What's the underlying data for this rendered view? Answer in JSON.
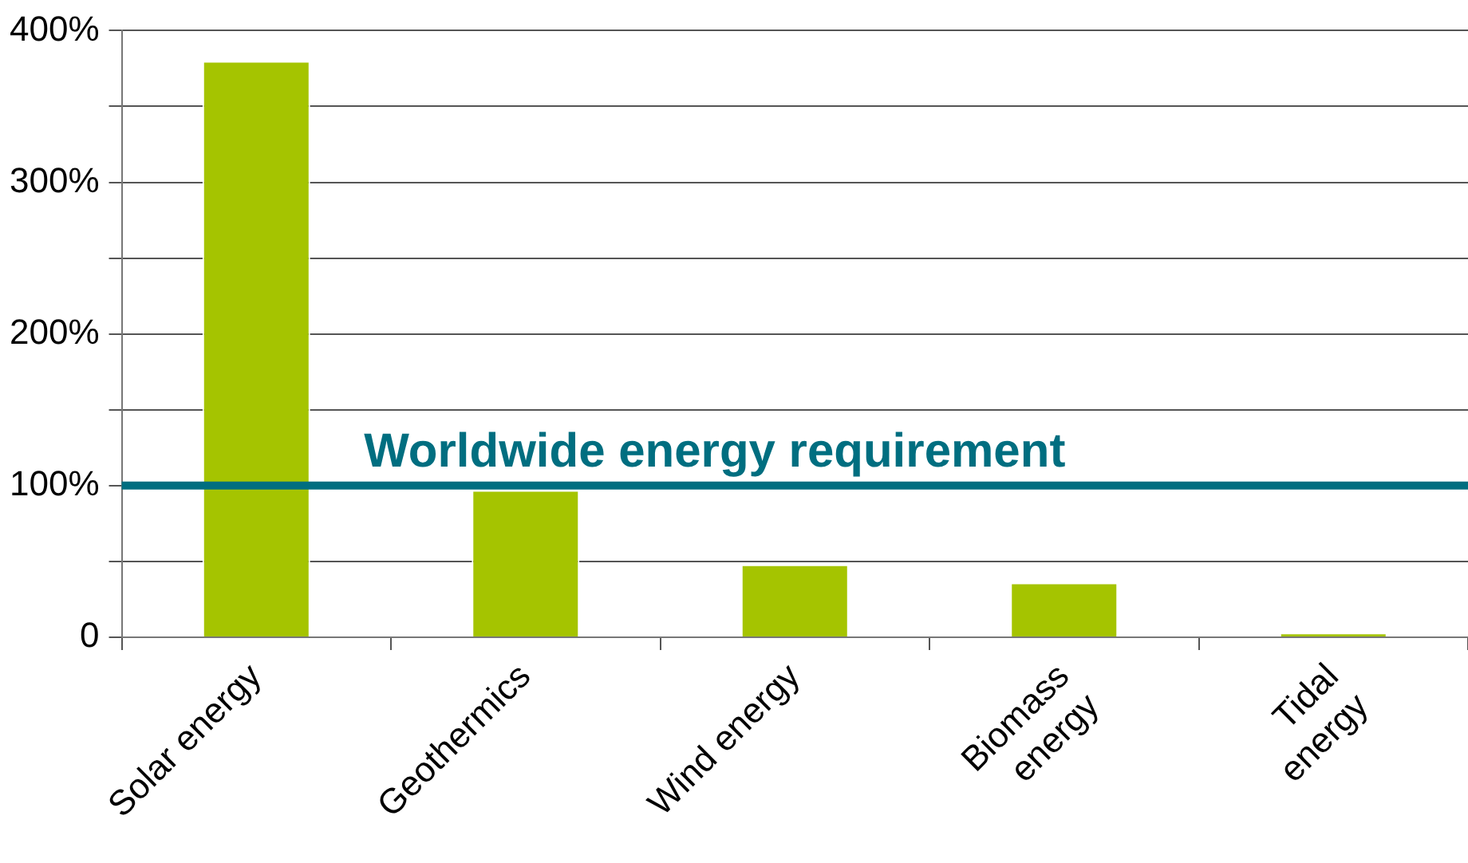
{
  "chart_data": {
    "type": "bar",
    "categories": [
      "Solar energy",
      "Geothermics",
      "Wind energy",
      "Biomass\nenergy",
      "Tidal\nenergy"
    ],
    "values": [
      380,
      97,
      48,
      36,
      3
    ],
    "color": "#a5c400",
    "ylim": [
      0,
      400
    ],
    "yticks": [
      {
        "value": 0,
        "label": "0"
      },
      {
        "value": 50,
        "label": null
      },
      {
        "value": 100,
        "label": "100%"
      },
      {
        "value": 150,
        "label": null
      },
      {
        "value": 200,
        "label": "200%"
      },
      {
        "value": 250,
        "label": null
      },
      {
        "value": 300,
        "label": "300%"
      },
      {
        "value": 350,
        "label": null
      },
      {
        "value": 400,
        "label": "400%"
      }
    ],
    "grid": "y",
    "ref_lines": [
      {
        "axis": "y",
        "value": 100,
        "label": "Worldwide energy requirement",
        "color": "#006e80"
      }
    ]
  }
}
